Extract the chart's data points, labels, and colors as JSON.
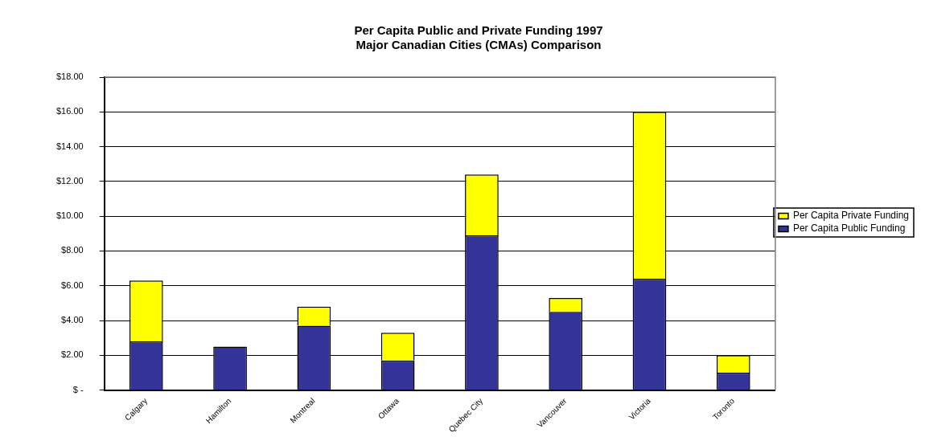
{
  "chart_data": {
    "type": "bar",
    "title": "Per Capita Public and Private Funding 1997",
    "subtitle": "Major Canadian Cities (CMAs) Comparison",
    "categories": [
      "Calgary",
      "Hamilton",
      "Montreal",
      "Ottawa",
      "Quebec City",
      "Vancouver",
      "Victoria",
      "Toronto"
    ],
    "stacked": true,
    "series": [
      {
        "name": "Per Capita Public Funding",
        "color": "#333399",
        "values": [
          2.8,
          2.5,
          3.7,
          1.7,
          8.9,
          4.5,
          6.4,
          1.0
        ]
      },
      {
        "name": "Per Capita Private Funding",
        "color": "#ffff00",
        "values": [
          3.5,
          0,
          1.1,
          1.6,
          3.5,
          0.8,
          9.6,
          1.0
        ]
      }
    ],
    "ylim": [
      0,
      18
    ],
    "yticks": [
      {
        "value": 0,
        "label": "$ -"
      },
      {
        "value": 2,
        "label": "$2.00"
      },
      {
        "value": 4,
        "label": "$4.00"
      },
      {
        "value": 6,
        "label": "$6.00"
      },
      {
        "value": 8,
        "label": "$8.00"
      },
      {
        "value": 10,
        "label": "$10.00"
      },
      {
        "value": 12,
        "label": "$12.00"
      },
      {
        "value": 14,
        "label": "$14.00"
      },
      {
        "value": 16,
        "label": "$16.00"
      },
      {
        "value": 18,
        "label": "$18.00"
      }
    ],
    "grid": "y",
    "legend": "right"
  }
}
